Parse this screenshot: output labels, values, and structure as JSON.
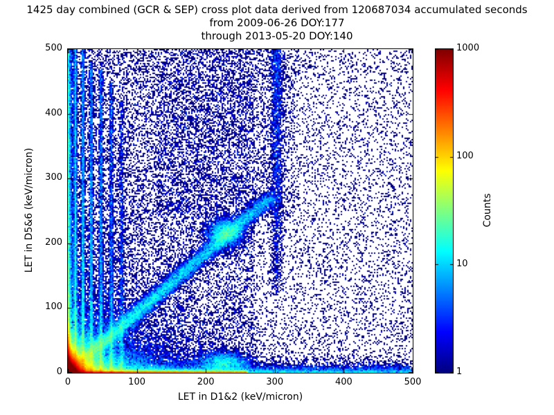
{
  "chart_data": {
    "type": "heatmap",
    "title": "1425 day combined (GCR & SEP) cross plot data derived from 120687034 accumulated seconds",
    "subtitle1": "from 2009-06-26 DOY:177",
    "subtitle2": "through 2013-05-20 DOY:140",
    "duration_days": 1425,
    "accumulated_seconds": 120687034,
    "date_from": "2009-06-26",
    "doy_from": 177,
    "date_through": "2013-05-20",
    "doy_through": 140,
    "xlabel": "LET in D1&2 (keV/micron)",
    "ylabel": "LET in D5&6 (keV/micron)",
    "xlim": [
      0,
      500
    ],
    "ylim": [
      0,
      500
    ],
    "xticks": [
      0,
      100,
      200,
      300,
      400,
      500
    ],
    "yticks": [
      0,
      100,
      200,
      300,
      400,
      500
    ],
    "grid": false,
    "colormap": "jet",
    "background": "#ffffff",
    "colorbar": {
      "label": "Counts",
      "scale": "log",
      "ticks": [
        1,
        10,
        100,
        1000
      ],
      "range": [
        1,
        1000
      ],
      "position": "right"
    },
    "density_features": [
      {
        "label": "origin-hotspot",
        "type": "exp2d",
        "sx": 6,
        "sy": 8,
        "n": 120000
      },
      {
        "label": "left-edge-intense",
        "type": "exp2d",
        "sx": 1.3,
        "sy": 18,
        "n": 14000
      },
      {
        "label": "origin-fan",
        "type": "exp2d",
        "sx": 30,
        "sy": 20,
        "n": 20000
      },
      {
        "label": "lower-left-fan",
        "type": "exp2d",
        "sx": 60,
        "sy": 45,
        "n": 12000
      },
      {
        "label": "bottom-intense-line",
        "type": "band_x",
        "xmax": 260,
        "xpow": 1.6,
        "yscale": 1.2,
        "n": 30000
      },
      {
        "label": "bottom-band",
        "type": "band_x",
        "xmax": 500,
        "xpow": 2.0,
        "yscale": 5,
        "n": 14000
      },
      {
        "label": "left-band",
        "type": "band_y",
        "ymax": 500,
        "ypow": 2.0,
        "xscale": 2.5,
        "n": 12000
      },
      {
        "label": "stripe-11",
        "type": "vstripe",
        "x": 11,
        "sx": 1.2,
        "ymin": 0,
        "ymax": 500,
        "ypow": 2.0,
        "n": 6000
      },
      {
        "label": "stripe-22",
        "type": "vstripe",
        "x": 22,
        "sx": 1.2,
        "ymin": 0,
        "ymax": 500,
        "ypow": 2.0,
        "n": 5000
      },
      {
        "label": "stripe-34",
        "type": "vstripe",
        "x": 34,
        "sx": 1.3,
        "ymin": 0,
        "ymax": 480,
        "ypow": 2.1,
        "n": 4200
      },
      {
        "label": "stripe-48",
        "type": "vstripe",
        "x": 48,
        "sx": 1.4,
        "ymin": 0,
        "ymax": 470,
        "ypow": 2.2,
        "n": 3600
      },
      {
        "label": "stripe-63",
        "type": "vstripe",
        "x": 63,
        "sx": 1.5,
        "ymin": 0,
        "ymax": 450,
        "ypow": 2.2,
        "n": 2800
      },
      {
        "label": "stripe-78",
        "type": "vstripe",
        "x": 78,
        "sx": 1.6,
        "ymin": 0,
        "ymax": 420,
        "ypow": 2.3,
        "n": 1700
      },
      {
        "label": "diagonal-band",
        "type": "diag",
        "x_end": 295,
        "y_end": 272,
        "sigma": 6,
        "tpow": 1.7,
        "n": 20000
      },
      {
        "label": "mid-blob-230-216",
        "type": "gauss",
        "cx": 228,
        "cy": 216,
        "sx": 13,
        "sy": 12,
        "n": 3500
      },
      {
        "label": "bottom-cluster-230",
        "type": "gauss",
        "cx": 226,
        "cy": 16,
        "sx": 18,
        "sy": 8,
        "n": 3000
      },
      {
        "label": "column-300",
        "type": "vstripe",
        "x": 303,
        "sx": 5,
        "ymin": 120,
        "ymax": 500,
        "ypow": 0.7,
        "n": 2200
      },
      {
        "label": "upper-mid-scatter",
        "type": "uniform",
        "x0": 130,
        "x1": 330,
        "y0": 240,
        "y1": 500,
        "n": 2600
      },
      {
        "label": "left-half-scatter",
        "type": "uniform",
        "x0": 0,
        "x1": 270,
        "y0": 0,
        "y1": 500,
        "n": 9000
      },
      {
        "label": "background-scatter",
        "type": "uniform",
        "x0": 0,
        "x1": 500,
        "y0": 0,
        "y1": 500,
        "n": 12000
      }
    ]
  }
}
